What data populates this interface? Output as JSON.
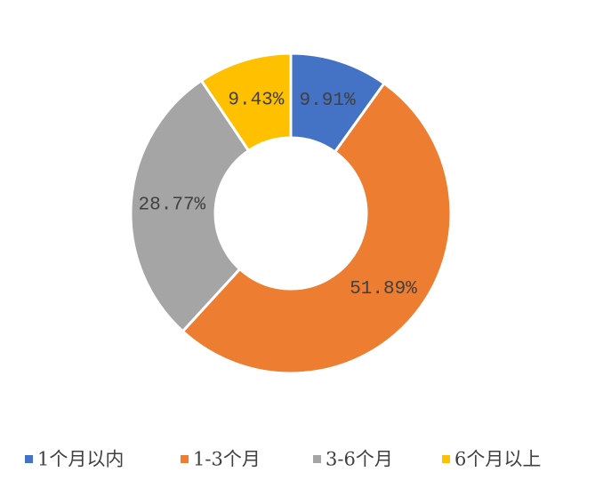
{
  "chart_data": {
    "type": "donut",
    "categories": [
      "1个月以内",
      "1-3个月",
      "3-6个月",
      "6个月以上"
    ],
    "values": [
      9.91,
      51.89,
      28.77,
      9.43
    ],
    "value_labels": [
      "9.91%",
      "51.89%",
      "28.77%",
      "9.43%"
    ],
    "colors": [
      "#4472c4",
      "#ed7d31",
      "#a5a5a5",
      "#ffc000"
    ],
    "legend": "bottom"
  }
}
